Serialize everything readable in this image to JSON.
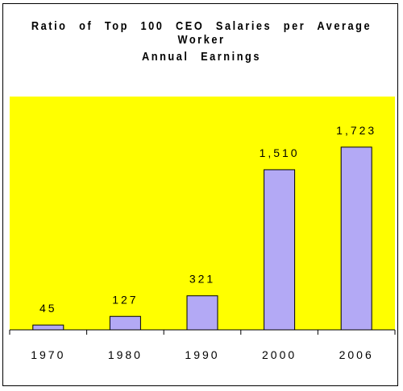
{
  "chart_data": {
    "type": "bar",
    "title_line1": "Ratio of Top 100 CEO Salaries per Average Worker",
    "title_line2": "Annual Earnings",
    "categories": [
      "1970",
      "1980",
      "1990",
      "2000",
      "2006"
    ],
    "values": [
      45,
      127,
      321,
      1510,
      1723
    ],
    "value_labels": [
      "45",
      "127",
      "321",
      "1,510",
      "1,723"
    ],
    "xlabel": "",
    "ylabel": "",
    "ylim": [
      0,
      2200
    ],
    "grid": false,
    "legend": "none",
    "colors": {
      "plot_background": "#ffff00",
      "bar_fill": "#b3a9f5",
      "bar_stroke": "#000000"
    }
  }
}
